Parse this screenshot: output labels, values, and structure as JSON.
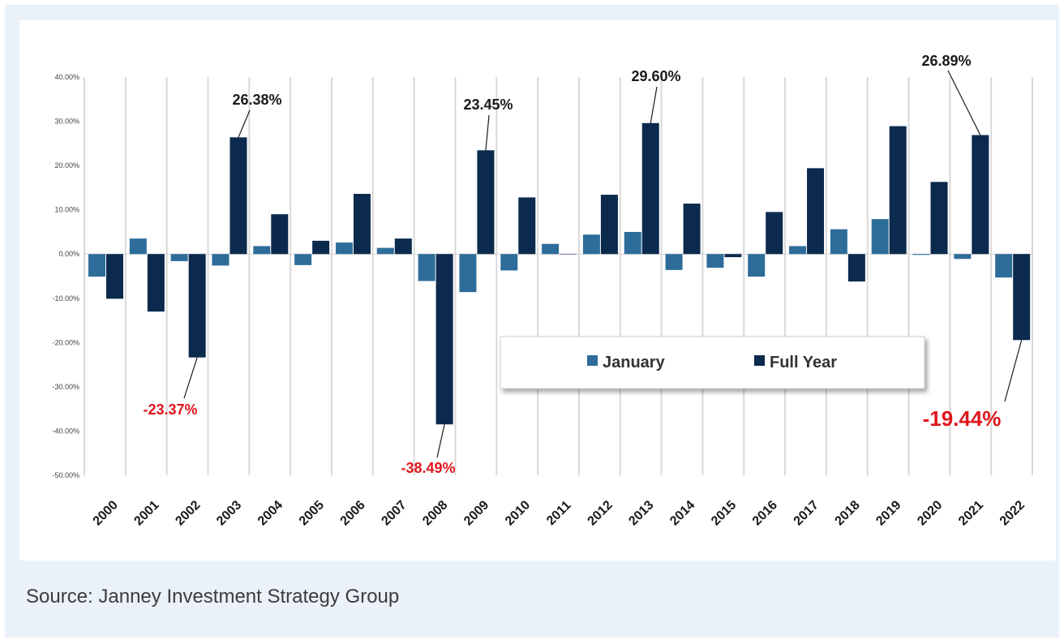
{
  "source": "Source: Janney Investment Strategy Group",
  "colors": {
    "january": "#2e6d9a",
    "full_year": "#0b2a4d",
    "negative_annotation": "#e0161d",
    "positive_annotation": "#1a1a1a",
    "background": "#eaf1f8"
  },
  "chart_data": {
    "type": "bar",
    "title": "",
    "xlabel": "",
    "ylabel": "",
    "ylim": [
      -50,
      40
    ],
    "yticks": [
      40,
      30,
      20,
      10,
      0,
      -10,
      -20,
      -30,
      -40,
      -50
    ],
    "ytick_labels": [
      "40.00%",
      "30.00%",
      "20.00%",
      "10.00%",
      "0.00%",
      "-10.00%",
      "-20.00%",
      "-30.00%",
      "-40.00%",
      "-50.00%"
    ],
    "categories": [
      "2000",
      "2001",
      "2002",
      "2003",
      "2004",
      "2005",
      "2006",
      "2007",
      "2008",
      "2009",
      "2010",
      "2011",
      "2012",
      "2013",
      "2014",
      "2015",
      "2016",
      "2017",
      "2018",
      "2019",
      "2020",
      "2021",
      "2022"
    ],
    "series": [
      {
        "name": "January",
        "values": [
          -5.1,
          3.5,
          -1.6,
          -2.6,
          1.8,
          -2.5,
          2.6,
          1.4,
          -6.1,
          -8.6,
          -3.7,
          2.3,
          4.4,
          5.0,
          -3.6,
          -3.1,
          -5.1,
          1.8,
          5.6,
          7.9,
          -0.2,
          -1.1,
          -5.3
        ]
      },
      {
        "name": "Full Year",
        "values": [
          -10.1,
          -13.0,
          -23.37,
          26.38,
          9.0,
          3.0,
          13.6,
          3.5,
          -38.49,
          23.45,
          12.8,
          0.0,
          13.4,
          29.6,
          11.4,
          -0.7,
          9.5,
          19.4,
          -6.2,
          28.9,
          16.3,
          26.89,
          -19.44
        ]
      }
    ],
    "legend": {
      "position": "lower-center",
      "entries": [
        "January",
        "Full Year"
      ]
    },
    "annotations": [
      {
        "category": "2002",
        "series": "Full Year",
        "text": "-23.37%",
        "style": "negative",
        "size": "normal"
      },
      {
        "category": "2003",
        "series": "Full Year",
        "text": "26.38%",
        "style": "positive",
        "size": "normal"
      },
      {
        "category": "2008",
        "series": "Full Year",
        "text": "-38.49%",
        "style": "negative",
        "size": "normal"
      },
      {
        "category": "2009",
        "series": "Full Year",
        "text": "23.45%",
        "style": "positive",
        "size": "normal"
      },
      {
        "category": "2013",
        "series": "Full Year",
        "text": "29.60%",
        "style": "positive",
        "size": "normal"
      },
      {
        "category": "2021",
        "series": "Full Year",
        "text": "26.89%",
        "style": "positive",
        "size": "normal"
      },
      {
        "category": "2022",
        "series": "Full Year",
        "text": "-19.44%",
        "style": "negative",
        "size": "large"
      }
    ]
  }
}
